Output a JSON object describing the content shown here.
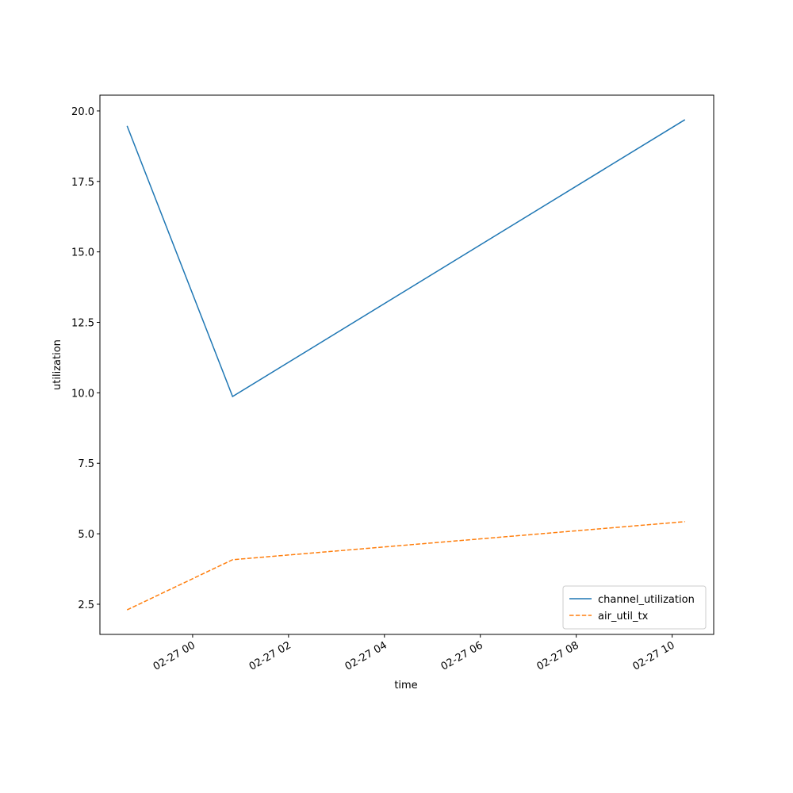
{
  "chart_data": {
    "type": "line",
    "xlabel": "time",
    "ylabel": "utilization",
    "x": [
      "02-26 22:38",
      "02-27 00:50",
      "02-27 10:16"
    ],
    "series": [
      {
        "name": "channel_utilization",
        "color": "#1f77b4",
        "dash": "solid",
        "values": [
          19.47,
          9.87,
          19.69
        ]
      },
      {
        "name": "air_util_tx",
        "color": "#ff7f0e",
        "dash": "dashed",
        "values": [
          2.3,
          4.08,
          5.43
        ]
      }
    ],
    "xlim": [
      "02-26 22:04",
      "02-27 10:52"
    ],
    "xticks": [
      "02-27 00",
      "02-27 02",
      "02-27 04",
      "02-27 06",
      "02-27 08",
      "02-27 10"
    ],
    "ylim": [
      1.43,
      20.56
    ],
    "yticks": [
      {
        "value": 2.5,
        "label": "2.5"
      },
      {
        "value": 5,
        "label": "5.0"
      },
      {
        "value": 7.5,
        "label": "7.5"
      },
      {
        "value": 10,
        "label": "10.0"
      },
      {
        "value": 12.5,
        "label": "12.5"
      },
      {
        "value": 15,
        "label": "15.0"
      },
      {
        "value": 17.5,
        "label": "17.5"
      },
      {
        "value": 20,
        "label": "20.0"
      }
    ],
    "grid": false,
    "legend": "lower right"
  }
}
